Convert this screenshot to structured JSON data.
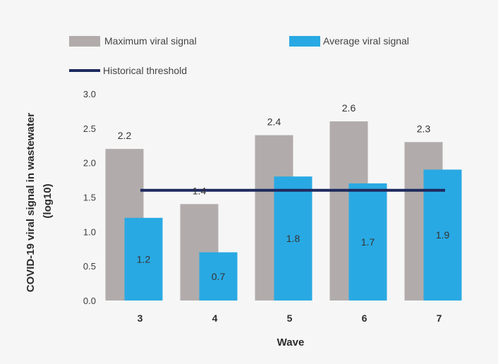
{
  "chart_data": {
    "type": "bar",
    "categories": [
      "3",
      "4",
      "5",
      "6",
      "7"
    ],
    "series": [
      {
        "name": "Maximum viral signal",
        "values": [
          2.2,
          1.4,
          2.4,
          2.6,
          2.3
        ],
        "color": "#b1acab",
        "data_labels": [
          "2.2",
          "1.4",
          "2.4",
          "2.6",
          "2.3"
        ]
      },
      {
        "name": "Average viral signal",
        "values": [
          1.2,
          0.7,
          1.8,
          1.7,
          1.9
        ],
        "color": "#29a9e3",
        "data_labels": [
          "1.2",
          "0.7",
          "1.8",
          "1.7",
          "1.9"
        ]
      }
    ],
    "reference_line": {
      "name": "Historical threshold",
      "value": 1.6,
      "color": "#1e2a5e"
    },
    "xlabel": "Wave",
    "ylabel_lines": [
      "COVID-19 viral signal in wastewater",
      "(log10)"
    ],
    "ylim": [
      0,
      3.0
    ],
    "yticks": [
      "0.0",
      "0.5",
      "1.0",
      "1.5",
      "2.0",
      "2.5",
      "3.0"
    ],
    "grid": false,
    "legend_position": "top"
  }
}
